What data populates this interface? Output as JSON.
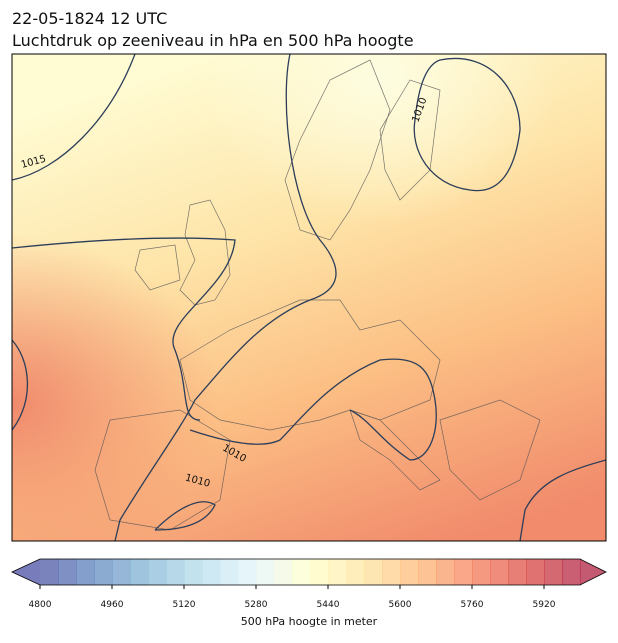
{
  "header": {
    "date": "22-05-1824 12 UTC",
    "title": "Luchtdruk op zeeniveau in hPa en 500 hPa hoogte"
  },
  "map": {
    "contour_labels": [
      "1015",
      "1010",
      "1010",
      "1010"
    ]
  },
  "colorbar": {
    "label": "500 hPa hoogte in meter",
    "lim": [
      4800,
      6000
    ],
    "bins": 30,
    "ticks": [
      4800,
      4960,
      5120,
      5280,
      5440,
      5600,
      5760,
      5920
    ],
    "colors": [
      "#313695",
      "#4575b4",
      "#74add1",
      "#abd9e9",
      "#e0f3f8",
      "#ffffbf",
      "#fee090",
      "#fdae61",
      "#f46d43",
      "#d73027",
      "#a50026"
    ],
    "opacity": 0.65
  }
}
